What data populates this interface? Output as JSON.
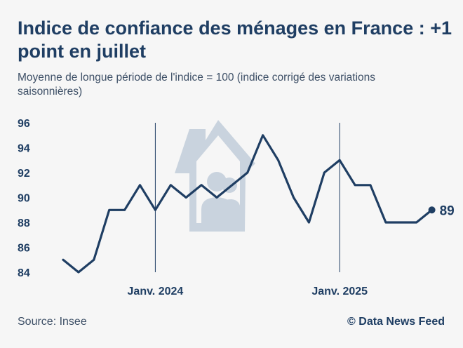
{
  "chart_data": {
    "type": "line",
    "title": "Indice de confiance des ménages en France : +1 point en juillet",
    "subtitle": "Moyenne de longue période de l'indice = 100 (indice corrigé des variations saisonnières)",
    "x": [
      "2023-07",
      "2023-08",
      "2023-09",
      "2023-10",
      "2023-11",
      "2023-12",
      "2024-01",
      "2024-02",
      "2024-03",
      "2024-04",
      "2024-05",
      "2024-06",
      "2024-07",
      "2024-08",
      "2024-09",
      "2024-10",
      "2024-11",
      "2024-12",
      "2025-01",
      "2025-02",
      "2025-03",
      "2025-04",
      "2025-05",
      "2025-06",
      "2025-07"
    ],
    "series": [
      {
        "values": [
          85,
          84,
          85,
          89,
          89,
          91,
          89,
          91,
          90,
          91,
          90,
          91,
          92,
          95,
          93,
          90,
          88,
          92,
          93,
          91,
          91,
          88,
          88,
          88,
          89
        ]
      }
    ],
    "ylim": [
      84,
      96
    ],
    "yticks": [
      "84",
      "86",
      "88",
      "90",
      "92",
      "94",
      "96"
    ],
    "xticks": [
      {
        "at": "2024-01",
        "label": "Janv. 2024"
      },
      {
        "at": "2025-01",
        "label": "Janv. 2025"
      }
    ],
    "end_label": "89",
    "grid": false,
    "line_color": "#1f3e63"
  },
  "footer": {
    "source": "Source: Insee",
    "credit": "© Data News Feed"
  },
  "decoration": {
    "icon": "house-family-icon",
    "color": "#c9d3de"
  }
}
